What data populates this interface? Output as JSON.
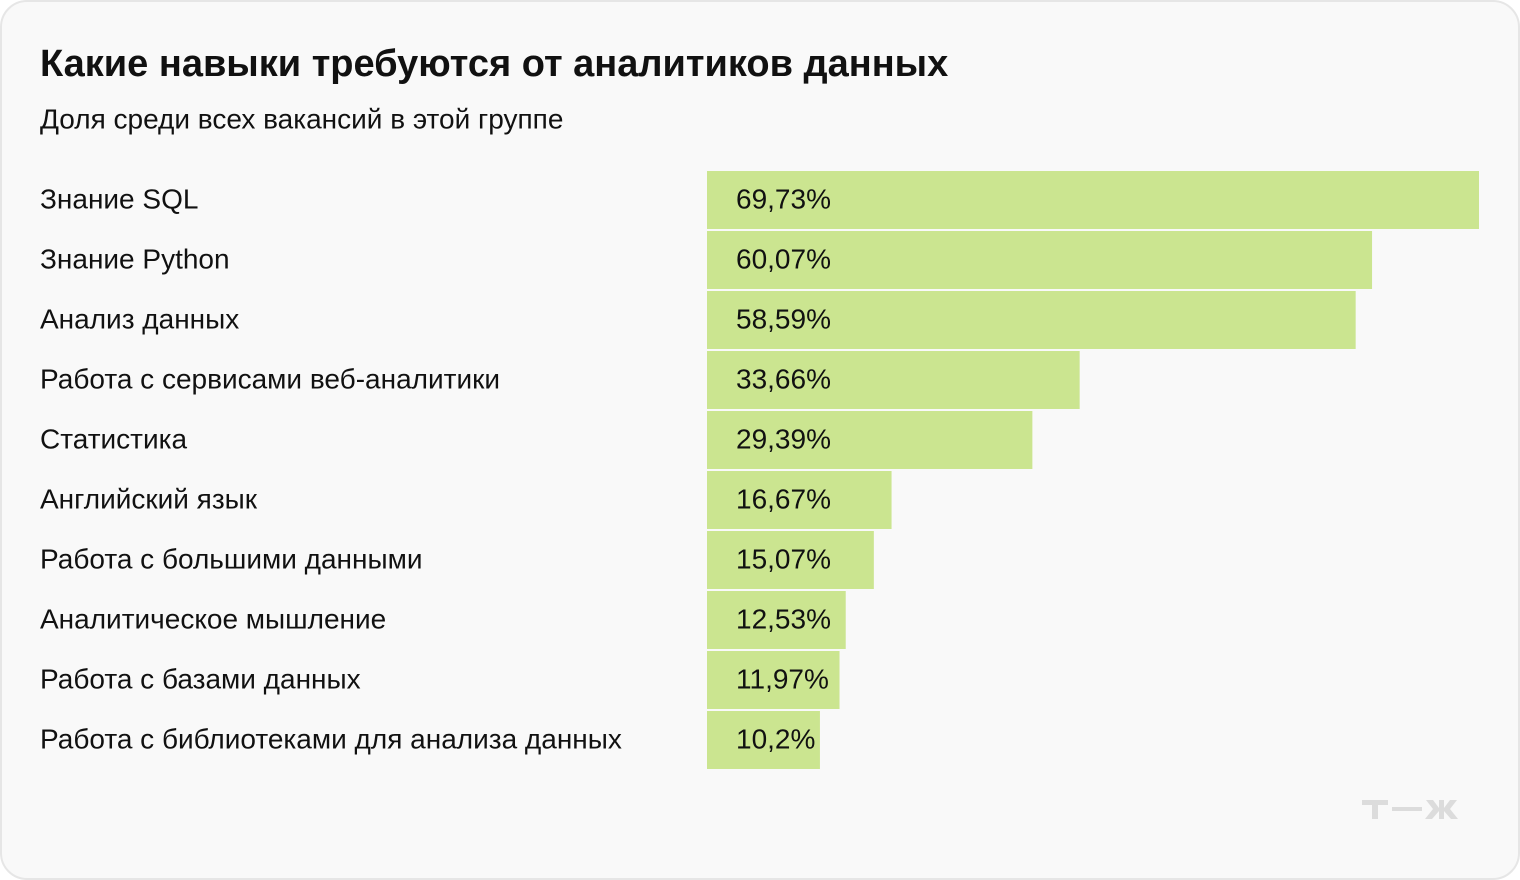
{
  "chart_data": {
    "type": "bar",
    "orientation": "horizontal",
    "title": "Какие навыки требуются от аналитиков данных",
    "subtitle": "Доля среди всех вакансий в этой группе",
    "categories": [
      "Знание SQL",
      "Знание Python",
      "Анализ данных",
      "Работа с сервисами веб-аналитики",
      "Статистика",
      "Английский язык",
      "Работа с большими данными",
      "Аналитическое мышление",
      "Работа с базами данных",
      "Работа с библиотеками для анализа данных"
    ],
    "values": [
      69.73,
      60.07,
      58.59,
      33.66,
      29.39,
      16.67,
      15.07,
      12.53,
      11.97,
      10.2
    ],
    "value_labels": [
      "69,73%",
      "60,07%",
      "58,59%",
      "33,66%",
      "29,39%",
      "16,67%",
      "15,07%",
      "12,53%",
      "11,97%",
      "10,2%"
    ],
    "color": "#cbe590"
  }
}
